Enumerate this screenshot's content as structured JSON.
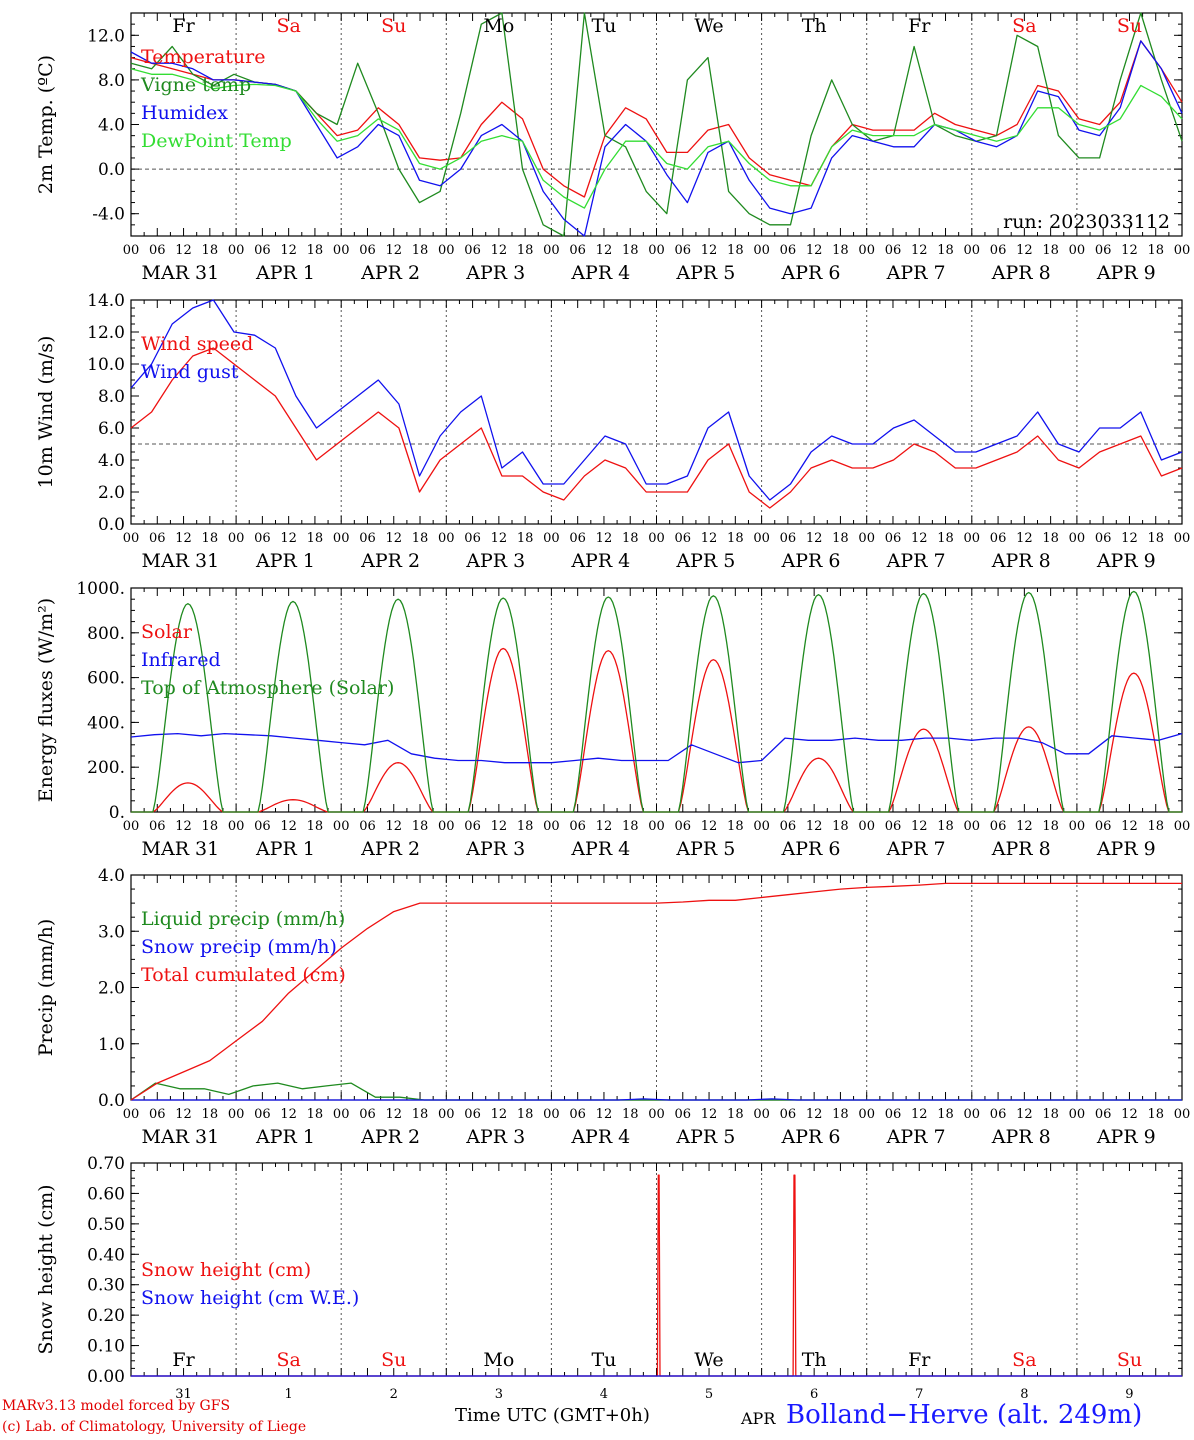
{
  "colors": {
    "red": "#ee1111",
    "darkgreen": "#1f8a1f",
    "blue": "#1111ee",
    "lightgreen": "#33dd33",
    "grid": "#555555",
    "weekday": "#000000",
    "weekend": "#ee1111"
  },
  "footer": {
    "credit_line1": "MARv3.13 model forced by GFS",
    "credit_line2": "(c) Lab. of Climatology, University of Liege",
    "xlabel": "Time UTC (GMT+0h)",
    "month_label": "APR",
    "station": "Bolland−Herve (alt. 249m)"
  },
  "days": {
    "weekday_names": [
      "Fr",
      "Sa",
      "Su",
      "Mo",
      "Tu",
      "We",
      "Th",
      "Fr",
      "Sa",
      "Su"
    ],
    "weekend_flags": [
      false,
      true,
      true,
      false,
      false,
      false,
      false,
      false,
      true,
      true
    ],
    "date_labels": [
      "MAR 31",
      "APR  1",
      "APR  2",
      "APR  3",
      "APR  4",
      "APR  5",
      "APR  6",
      "APR  7",
      "APR  8",
      "APR  9"
    ],
    "day_numbers": [
      "31",
      "1",
      "2",
      "3",
      "4",
      "5",
      "6",
      "7",
      "8",
      "9"
    ],
    "hour_labels": [
      "00",
      "06",
      "12",
      "18"
    ],
    "end_hour_label": "00"
  },
  "chart_data": [
    {
      "type": "line",
      "ylabel": "2m Temp. (ºC)",
      "ylim": [
        -6,
        14
      ],
      "yticks": [
        -4,
        0,
        4,
        8,
        12
      ],
      "ytick_labels": [
        "-4.0",
        "0.0",
        "4.0",
        "8.0",
        "12.0"
      ],
      "dashed_ref": 0,
      "run_label": "run: 2023033112",
      "x_hours_step": 6,
      "series": [
        {
          "name": "Temperature",
          "color": "red",
          "values": [
            10,
            9.5,
            9,
            8.5,
            8,
            8,
            7.8,
            7.6,
            7,
            5,
            3,
            3.5,
            5.5,
            4,
            1,
            0.8,
            1,
            4,
            6,
            4.5,
            0,
            -1.5,
            -2.5,
            3,
            5.5,
            4.5,
            1.5,
            1.5,
            3.5,
            4,
            1,
            -0.5,
            -1,
            -1.5,
            2,
            4,
            3.5,
            3.5,
            3.5,
            5,
            4,
            3.5,
            3,
            4,
            7.5,
            7,
            4.5,
            4,
            6,
            11.5,
            9,
            6
          ]
        },
        {
          "name": "Vigne temp",
          "color": "darkgreen",
          "values": [
            9.5,
            9,
            11,
            8.5,
            7.5,
            8.5,
            7.8,
            7.6,
            7,
            5,
            4,
            9.5,
            5,
            0,
            -3,
            -2,
            5,
            13,
            14,
            0,
            -5,
            -6,
            14,
            3,
            2,
            -2,
            -4,
            8,
            10,
            -2,
            -4,
            -5,
            -5,
            3,
            8,
            4,
            2.5,
            3,
            11,
            4,
            3,
            2.5,
            3,
            12,
            11,
            3,
            1,
            1,
            8,
            14,
            8,
            2.5
          ]
        },
        {
          "name": "Humidex",
          "color": "blue",
          "values": [
            10.5,
            9.5,
            9.5,
            9,
            8,
            8,
            7.8,
            7.6,
            7,
            4,
            1,
            2,
            4,
            3,
            -1,
            -1.5,
            0,
            3,
            4,
            2.5,
            -2,
            -4.5,
            -6,
            2,
            4,
            2.5,
            -0.5,
            -3,
            1.5,
            2.5,
            -1,
            -3.5,
            -4,
            -3.5,
            1,
            3,
            2.5,
            2,
            2,
            4,
            3.5,
            2.5,
            2,
            3,
            7,
            6.5,
            3.5,
            3,
            5.5,
            11.5,
            9,
            5
          ]
        },
        {
          "name": "DewPoint Temp",
          "color": "lightgreen",
          "values": [
            9,
            8.5,
            8.5,
            8,
            7.2,
            7.5,
            7.6,
            7.5,
            7,
            4.5,
            2.5,
            3,
            4.5,
            3.5,
            0.5,
            0,
            1,
            2.5,
            3,
            2.5,
            -1,
            -2.5,
            -3.5,
            0,
            2.5,
            2.5,
            0.5,
            0,
            2,
            2.5,
            0.5,
            -1,
            -1.5,
            -1.5,
            2,
            3.5,
            3,
            3,
            3,
            4,
            3.5,
            3,
            2.5,
            3,
            5.5,
            5.5,
            4,
            3.5,
            4.5,
            7.5,
            6.5,
            4.5
          ]
        }
      ]
    },
    {
      "type": "line",
      "ylabel": "10m Wind (m/s)",
      "ylim": [
        0,
        14
      ],
      "yticks": [
        0,
        2,
        4,
        6,
        8,
        10,
        12,
        14
      ],
      "ytick_labels": [
        "0.0",
        "2.0",
        "4.0",
        "6.0",
        "8.0",
        "10.0",
        "12.0",
        "14.0"
      ],
      "dashed_ref": 5,
      "x_hours_step": 6,
      "series": [
        {
          "name": "Wind speed",
          "color": "red",
          "values": [
            6,
            7,
            9,
            10.5,
            11,
            10,
            9,
            8,
            6,
            4,
            5,
            6,
            7,
            6,
            2,
            4,
            5,
            6,
            3,
            3,
            2,
            1.5,
            3,
            4,
            3.5,
            2,
            2,
            2,
            4,
            5,
            2,
            1,
            2,
            3.5,
            4,
            3.5,
            3.5,
            4,
            5,
            4.5,
            3.5,
            3.5,
            4,
            4.5,
            5.5,
            4,
            3.5,
            4.5,
            5,
            5.5,
            3,
            3.5
          ]
        },
        {
          "name": "Wind gust",
          "color": "blue",
          "values": [
            8.5,
            10,
            12.5,
            13.5,
            14,
            12,
            11.8,
            11,
            8,
            6,
            7,
            8,
            9,
            7.5,
            3,
            5.5,
            7,
            8,
            3.5,
            4.5,
            2.5,
            2.5,
            4,
            5.5,
            5,
            2.5,
            2.5,
            3,
            6,
            7,
            3,
            1.5,
            2.5,
            4.5,
            5.5,
            5,
            5,
            6,
            6.5,
            5.5,
            4.5,
            4.5,
            5,
            5.5,
            7,
            5,
            4.5,
            6,
            6,
            7,
            4,
            4.5
          ]
        }
      ]
    },
    {
      "type": "line",
      "ylabel": "Energy fluxes (W/m²)",
      "ylim": [
        0,
        1000
      ],
      "yticks": [
        0,
        200,
        400,
        600,
        800,
        1000
      ],
      "ytick_labels": [
        "0.",
        "200.",
        "400.",
        "600.",
        "800.",
        "1000."
      ],
      "x_hours_step": 6,
      "peak_hours": [
        5,
        13,
        21
      ],
      "series": [
        {
          "name": "Solar",
          "color": "red",
          "daily_peak": [
            130,
            55,
            220,
            730,
            720,
            680,
            240,
            370,
            380,
            620
          ]
        },
        {
          "name": "Infrared",
          "color": "blue",
          "values": [
            335,
            345,
            350,
            340,
            350,
            345,
            340,
            330,
            320,
            310,
            300,
            320,
            260,
            240,
            230,
            230,
            220,
            220,
            220,
            230,
            240,
            230,
            230,
            230,
            300,
            260,
            220,
            230,
            330,
            320,
            320,
            330,
            320,
            320,
            330,
            330,
            320,
            330,
            330,
            310,
            260,
            260,
            340,
            330,
            320,
            350
          ]
        },
        {
          "name": "Top of Atmosphere (Solar)",
          "color": "darkgreen",
          "daily_peak": [
            930,
            940,
            950,
            955,
            960,
            965,
            970,
            975,
            980,
            985
          ]
        }
      ]
    },
    {
      "type": "line",
      "ylabel": "Precip (mm/h)",
      "ylim": [
        0,
        4
      ],
      "yticks": [
        0,
        1,
        2,
        3,
        4
      ],
      "ytick_labels": [
        "0.0",
        "1.0",
        "2.0",
        "3.0",
        "4.0"
      ],
      "x_hours_step": 6,
      "series": [
        {
          "name": "Liquid precip (mm/h)",
          "color": "darkgreen",
          "values": [
            0,
            0.3,
            0.2,
            0.2,
            0.1,
            0.25,
            0.3,
            0.2,
            0.25,
            0.3,
            0.05,
            0.05,
            0,
            0,
            0,
            0,
            0,
            0,
            0,
            0,
            0,
            0,
            0,
            0,
            0,
            0,
            0,
            0,
            0,
            0,
            0,
            0,
            0,
            0,
            0,
            0,
            0,
            0,
            0,
            0,
            0,
            0,
            0,
            0
          ]
        },
        {
          "name": "Snow precip (mm/h)",
          "color": "blue",
          "values": [
            0,
            0,
            0,
            0,
            0,
            0,
            0,
            0,
            0,
            0,
            0,
            0,
            0,
            0,
            0,
            0,
            0,
            0,
            0,
            0,
            0.02,
            0,
            0,
            0,
            0,
            0.02,
            0,
            0,
            0,
            0,
            0,
            0,
            0,
            0,
            0,
            0,
            0,
            0,
            0,
            0,
            0,
            0
          ]
        },
        {
          "name": "Total cumulated (cm)",
          "color": "red",
          "values": [
            0,
            0.3,
            0.5,
            0.7,
            1.05,
            1.4,
            1.9,
            2.3,
            2.7,
            3.05,
            3.35,
            3.5,
            3.5,
            3.5,
            3.5,
            3.5,
            3.5,
            3.5,
            3.5,
            3.5,
            3.5,
            3.52,
            3.55,
            3.55,
            3.6,
            3.65,
            3.7,
            3.75,
            3.78,
            3.8,
            3.82,
            3.85,
            3.85,
            3.85,
            3.85,
            3.85,
            3.85,
            3.85,
            3.85,
            3.85,
            3.85
          ]
        }
      ]
    },
    {
      "type": "line",
      "ylabel": "Snow height (cm)",
      "ylim": [
        0,
        0.7
      ],
      "yticks": [
        0,
        0.1,
        0.2,
        0.3,
        0.4,
        0.5,
        0.6,
        0.7
      ],
      "ytick_labels": [
        "0.00",
        "0.10",
        "0.20",
        "0.30",
        "0.40",
        "0.50",
        "0.60",
        "0.70"
      ],
      "series": [
        {
          "name": "Snow height (cm)",
          "color": "red",
          "spikes": [
            {
              "day": 5,
              "hour": 0.5,
              "value": 0.66
            },
            {
              "day": 6,
              "hour": 7.5,
              "value": 0.66
            }
          ]
        },
        {
          "name": "Snow height (cm W.E.)",
          "color": "blue",
          "values": [
            0,
            0
          ]
        }
      ]
    }
  ]
}
